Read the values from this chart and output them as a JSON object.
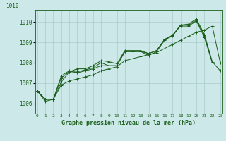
{
  "bg_color": "#cce8e8",
  "grid_color": "#aacccc",
  "line_color": "#1a5e1a",
  "title": "Graphe pression niveau de la mer (hPa)",
  "xlabel_vals": [
    0,
    1,
    2,
    3,
    4,
    5,
    6,
    7,
    8,
    9,
    10,
    11,
    12,
    13,
    14,
    15,
    16,
    17,
    18,
    19,
    20,
    21,
    22,
    23
  ],
  "ylim": [
    1005.5,
    1010.6
  ],
  "xlim": [
    -0.3,
    23.3
  ],
  "yticks": [
    1006,
    1007,
    1008,
    1009,
    1010
  ],
  "ytop_label": "1010",
  "series": [
    [
      1006.6,
      1006.2,
      1006.2,
      1007.25,
      1007.55,
      1007.55,
      1007.65,
      1007.75,
      1008.0,
      1007.85,
      1007.85,
      1008.55,
      1008.55,
      1008.55,
      1008.35,
      1008.55,
      1009.1,
      1009.35,
      1009.8,
      1009.8,
      1010.05,
      1009.25,
      1008.0,
      null
    ],
    [
      1006.6,
      1006.1,
      1006.2,
      1007.35,
      1007.6,
      1007.5,
      1007.6,
      1007.7,
      1007.85,
      1007.85,
      1007.85,
      1008.55,
      1008.55,
      1008.55,
      1008.45,
      1008.6,
      1009.15,
      1009.3,
      1009.85,
      1009.85,
      1010.1,
      1009.35,
      1008.0,
      null
    ],
    [
      1006.6,
      1006.2,
      1006.2,
      1007.05,
      1007.55,
      1007.7,
      1007.7,
      1007.85,
      1008.1,
      1008.05,
      1007.95,
      1008.6,
      1008.6,
      1008.6,
      1008.45,
      1008.6,
      1009.15,
      1009.35,
      1009.85,
      1009.9,
      1010.15,
      1009.4,
      1008.05,
      1007.6
    ],
    [
      1006.6,
      1006.2,
      1006.2,
      1006.9,
      1007.1,
      1007.2,
      1007.3,
      1007.4,
      1007.6,
      1007.7,
      1007.8,
      1008.1,
      1008.2,
      1008.3,
      1008.4,
      1008.5,
      1008.7,
      1008.9,
      1009.1,
      1009.3,
      1009.5,
      1009.6,
      1009.8,
      1008.0
    ]
  ]
}
